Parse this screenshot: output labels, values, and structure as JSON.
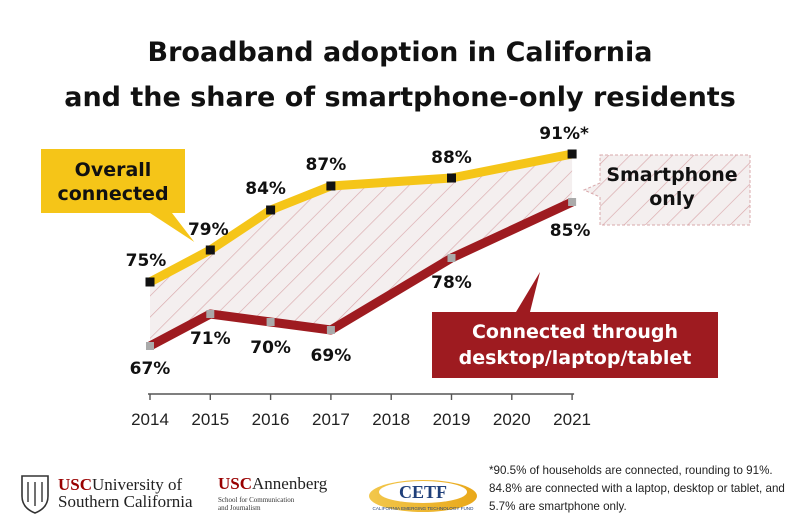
{
  "title_lines": [
    "Broadband adoption in California",
    "and the share of smartphone-only residents"
  ],
  "chart_data": {
    "type": "line",
    "x": [
      2014,
      2015,
      2016,
      2017,
      2018,
      2019,
      2020,
      2021
    ],
    "xlabel": "",
    "ylabel": "",
    "series": [
      {
        "name": "Overall connected",
        "color": "#f5c518",
        "points": [
          [
            2014,
            75
          ],
          [
            2015,
            79
          ],
          [
            2016,
            84
          ],
          [
            2017,
            87
          ],
          [
            2019,
            88
          ],
          [
            2021,
            91
          ]
        ],
        "labels": [
          "75%",
          "79%",
          "84%",
          "87%",
          "88%",
          "91%*"
        ]
      },
      {
        "name": "Connected through desktop/laptop/tablet",
        "color": "#9e1b20",
        "points": [
          [
            2014,
            67
          ],
          [
            2015,
            71
          ],
          [
            2016,
            70
          ],
          [
            2017,
            69
          ],
          [
            2019,
            78
          ],
          [
            2021,
            85
          ]
        ],
        "labels": [
          "67%",
          "71%",
          "70%",
          "69%",
          "78%",
          "85%"
        ]
      }
    ],
    "area_label": "Smartphone only",
    "callouts": {
      "overall": [
        "Overall",
        "connected"
      ],
      "smartphone": [
        "Smartphone",
        "only"
      ],
      "desktop": [
        "Connected through",
        "desktop/laptop/tablet"
      ]
    }
  },
  "footnote": "*90.5% of households are connected, rounding to 91%. 84.8% are connected with a laptop, desktop or tablet, and 5.7% are smartphone only.",
  "logos": {
    "usc_abbr": "USC",
    "usc_name_1": "University of",
    "usc_name_2": "Southern California",
    "annenberg_abbr": "USC",
    "annenberg_name": "Annenberg",
    "annenberg_sub_1": "School for Communication",
    "annenberg_sub_2": "and Journalism",
    "cetf_abbr": "CETF",
    "cetf_sub": "CALIFORNIA EMERGING TECHNOLOGY FUND"
  },
  "colors": {
    "overall": "#f5c518",
    "desktop": "#9e1b20",
    "hatch": "#d9a8ab",
    "area_fill": "#f3eeee"
  }
}
